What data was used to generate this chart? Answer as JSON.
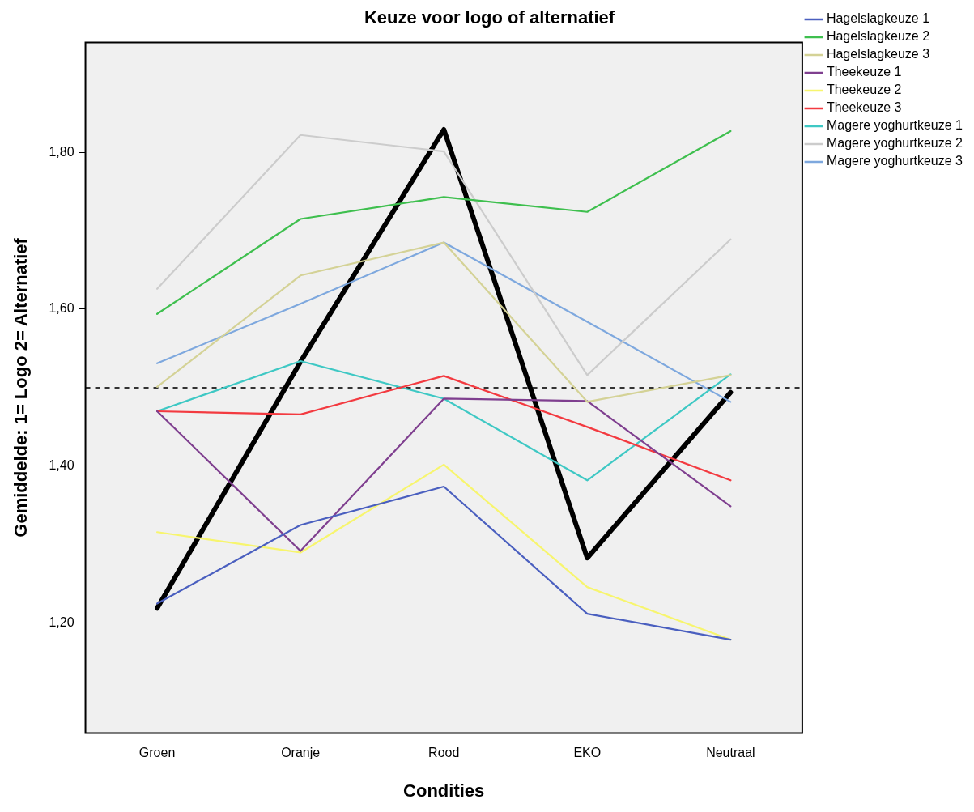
{
  "chart_data": {
    "type": "line",
    "title": "Keuze voor logo of alternatief",
    "xlabel": "Condities",
    "ylabel": "Gemiddelde: 1= Logo 2= Alternatief",
    "categories": [
      "Groen",
      "Oranje",
      "Rood",
      "EKO",
      "Neutraal"
    ],
    "series": [
      {
        "name": "Hagelslagkeuze 1",
        "color": "#4a5fbf",
        "values": [
          1.225,
          1.325,
          1.374,
          1.212,
          1.179
        ]
      },
      {
        "name": "Hagelslagkeuze 2",
        "color": "#3ebf4e",
        "values": [
          1.594,
          1.715,
          1.743,
          1.724,
          1.827
        ]
      },
      {
        "name": "Hagelslagkeuze 3",
        "color": "#d4d296",
        "values": [
          1.501,
          1.643,
          1.685,
          1.482,
          1.516
        ]
      },
      {
        "name": "Theekeuze 1",
        "color": "#7f3f8f",
        "values": [
          1.47,
          1.292,
          1.486,
          1.483,
          1.349
        ]
      },
      {
        "name": "Theekeuze 2",
        "color": "#f7f56e",
        "values": [
          1.316,
          1.29,
          1.402,
          1.246,
          1.179
        ]
      },
      {
        "name": "Theekeuze 3",
        "color": "#f33a40",
        "values": [
          1.47,
          1.466,
          1.515,
          1.45,
          1.382
        ]
      },
      {
        "name": "Magere yoghurtkeuze 1",
        "color": "#3ec8c4",
        "values": [
          1.47,
          1.534,
          1.486,
          1.382,
          1.517
        ]
      },
      {
        "name": "Magere yoghurtkeuze 2",
        "color": "#cccccc",
        "values": [
          1.626,
          1.822,
          1.801,
          1.516,
          1.689
        ]
      },
      {
        "name": "Magere yoghurtkeuze 3",
        "color": "#7ea8de",
        "values": [
          1.531,
          1.607,
          1.685,
          1.584,
          1.482
        ]
      },
      {
        "color": "#000000",
        "values": [
          1.219,
          1.533,
          1.829,
          1.283,
          1.494
        ]
      }
    ],
    "ylim": [
      1.06,
      1.94
    ],
    "yticks": [
      {
        "value": 1.2,
        "label": "1,20"
      },
      {
        "value": 1.4,
        "label": "1,40"
      },
      {
        "value": 1.6,
        "label": "1,60"
      },
      {
        "value": 1.8,
        "label": "1,80"
      }
    ],
    "ref_lines": [
      {
        "axis": "y",
        "value": 1.5,
        "color": "#333333",
        "line_style": "dashed"
      }
    ],
    "grid": false,
    "legend": "right",
    "marker": "none",
    "line_style": "solid"
  }
}
